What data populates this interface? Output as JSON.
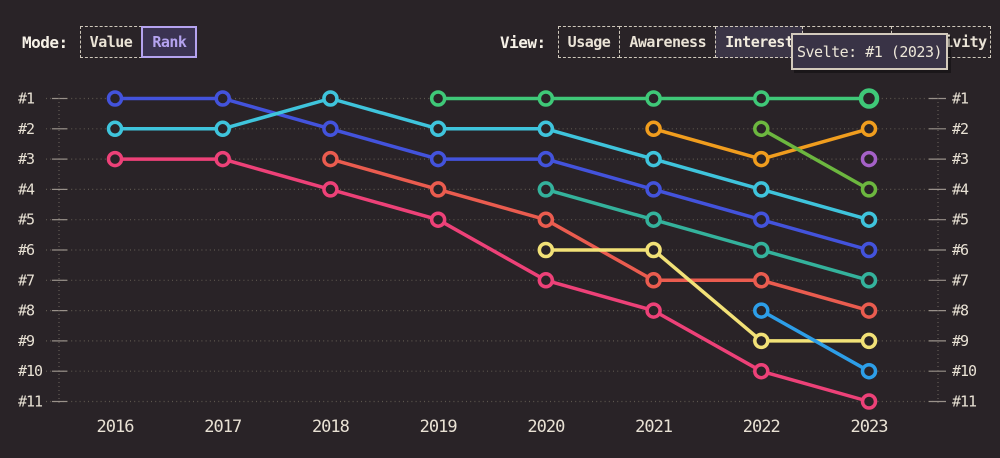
{
  "controls": {
    "mode": {
      "label": "Mode:",
      "options": [
        {
          "label": "Value",
          "selected": false
        },
        {
          "label": "Rank",
          "selected": true
        }
      ]
    },
    "view": {
      "label": "View:",
      "options": [
        {
          "label": "Usage",
          "selected": false
        },
        {
          "label": "Awareness",
          "selected": false
        },
        {
          "label": "Interest",
          "selected": true
        },
        {
          "label": "",
          "selected": false
        },
        {
          "label": "Positivity",
          "selected": false
        }
      ]
    }
  },
  "tooltip": {
    "text": "Svelte: #1 (2023)"
  },
  "chart_data": {
    "type": "line",
    "variant": "bump-rank",
    "years": [
      "2016",
      "2017",
      "2018",
      "2019",
      "2020",
      "2021",
      "2022",
      "2023"
    ],
    "rank_labels": [
      "#1",
      "#2",
      "#3",
      "#4",
      "#5",
      "#6",
      "#7",
      "#8",
      "#9",
      "#10",
      "#11"
    ],
    "ylim": [
      1,
      11
    ],
    "grid": "dotted-horizontal",
    "series": [
      {
        "name": "pink",
        "color": "#ed4178",
        "ranks": [
          3,
          3,
          4,
          5,
          7,
          8,
          10,
          11
        ]
      },
      {
        "name": "indigo",
        "color": "#4353dc",
        "ranks": [
          1,
          1,
          2,
          3,
          3,
          4,
          5,
          6
        ]
      },
      {
        "name": "cyan",
        "color": "#3fc4dc",
        "ranks": [
          2,
          2,
          1,
          2,
          2,
          3,
          4,
          5
        ]
      },
      {
        "name": "salmon",
        "color": "#ea5c4f",
        "ranks": [
          null,
          null,
          3,
          4,
          5,
          7,
          7,
          8
        ]
      },
      {
        "name": "teal",
        "color": "#34b29c",
        "ranks": [
          null,
          null,
          null,
          null,
          4,
          5,
          6,
          7
        ]
      },
      {
        "name": "yellow",
        "color": "#f2e177",
        "ranks": [
          null,
          null,
          null,
          null,
          6,
          6,
          9,
          9
        ]
      },
      {
        "name": "orange",
        "color": "#f09d1e",
        "ranks": [
          null,
          null,
          null,
          null,
          null,
          2,
          3,
          2
        ]
      },
      {
        "name": "lime",
        "color": "#6cb73f",
        "ranks": [
          null,
          null,
          null,
          null,
          null,
          null,
          2,
          4
        ]
      },
      {
        "name": "sky",
        "color": "#2d9ee8",
        "ranks": [
          null,
          null,
          null,
          null,
          null,
          null,
          8,
          10
        ]
      },
      {
        "name": "purple",
        "color": "#a561c8",
        "ranks": [
          null,
          null,
          null,
          null,
          null,
          null,
          null,
          3
        ]
      },
      {
        "name": "svelte",
        "color": "#3fc878",
        "ranks": [
          null,
          null,
          null,
          1,
          1,
          1,
          1,
          1
        ]
      }
    ],
    "highlight": {
      "series": "svelte",
      "year": "2023",
      "rank": 1
    }
  },
  "theme": {
    "background": "#292327",
    "text": "#eae3d6",
    "grid_dot": "#5e574f",
    "grid_tick": "#99918a",
    "view_selected_fill": "#3b3546",
    "rank_selected_border": "#b5a3f0",
    "tooltip_bg": "#393346",
    "tooltip_border": "#d3cabc"
  }
}
